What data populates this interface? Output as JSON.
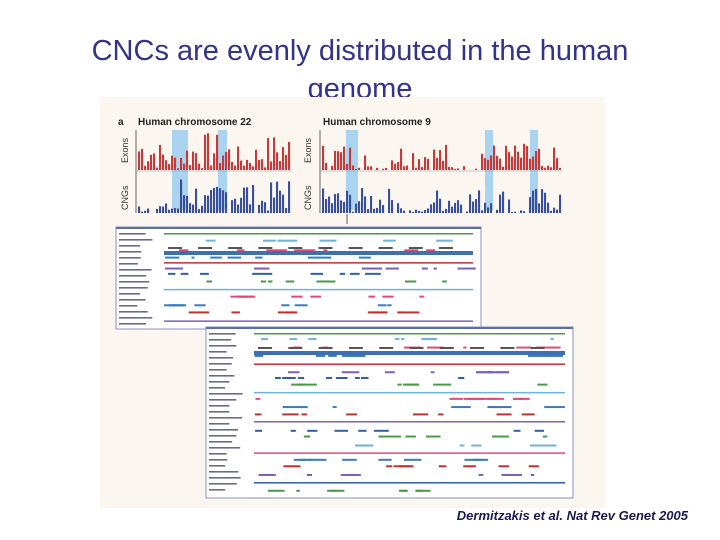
{
  "slide": {
    "title_line1": "CNCs are evenly distributed in the human",
    "title_line2": "genome",
    "citation": "Dermitzakis et al. Nat Rev Genet 2005"
  },
  "figure": {
    "panel_letter": "a",
    "left_panel": {
      "title": "Human chromosome 22",
      "top_label": "Exons",
      "bottom_label": "CNGs"
    },
    "right_panel": {
      "title": "Human chromosome 9",
      "top_label": "Exons",
      "bottom_label": "CNGs"
    },
    "colors": {
      "exon_bars": "#c43a3a",
      "cng_bars": "#3a4f9a",
      "highlight": "#a9d3ee",
      "background": "#fbf6ef"
    }
  }
}
